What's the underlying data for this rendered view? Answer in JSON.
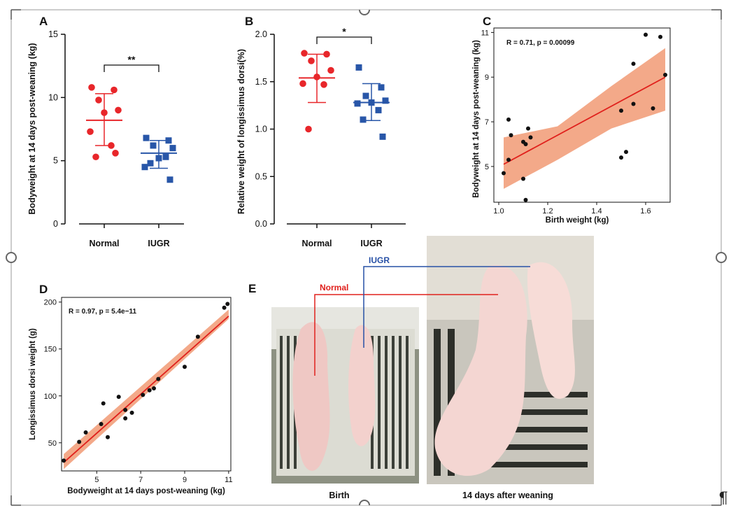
{
  "colors": {
    "normal": "#e8262a",
    "iugr": "#2856a8",
    "ribbon": "#f2a07c",
    "fit_line": "#e0201c",
    "point": "#111111"
  },
  "panels": {
    "A": "A",
    "B": "B",
    "C": "C",
    "D": "D",
    "E": "E"
  },
  "pilcrow": "¶",
  "chart_data": [
    {
      "id": "A",
      "type": "scatter",
      "title": "",
      "ylabel": "Bodyweight at 14 days post-weaning (kg)",
      "xlabel": "",
      "ylim": [
        0,
        15
      ],
      "yticks": [
        "0",
        "5",
        "10",
        "15"
      ],
      "categories": [
        "Normal",
        "IUGR"
      ],
      "series": [
        {
          "name": "Normal",
          "values": [
            10.8,
            10.6,
            9.8,
            9.0,
            8.8,
            7.3,
            6.2,
            5.3,
            5.6
          ],
          "mean": 8.2,
          "sd_low": 6.2,
          "sd_high": 10.3
        },
        {
          "name": "IUGR",
          "values": [
            6.8,
            6.6,
            6.2,
            6.0,
            5.2,
            4.5,
            5.3,
            4.8,
            3.5
          ],
          "mean": 5.6,
          "sd_low": 4.4,
          "sd_high": 6.6
        }
      ],
      "significance": "**"
    },
    {
      "id": "B",
      "type": "scatter",
      "title": "",
      "ylabel": "Relative weight of longissimus dorsi(%)",
      "xlabel": "",
      "ylim": [
        0,
        2.0
      ],
      "yticks": [
        "0.0",
        "0.5",
        "1.0",
        "1.5",
        "2.0"
      ],
      "categories": [
        "Normal",
        "IUGR"
      ],
      "series": [
        {
          "name": "Normal",
          "values": [
            1.8,
            1.79,
            1.72,
            1.62,
            1.55,
            1.48,
            1.47,
            1.0
          ],
          "mean": 1.54,
          "sd_low": 1.28,
          "sd_high": 1.79
        },
        {
          "name": "IUGR",
          "values": [
            1.65,
            1.44,
            1.35,
            1.3,
            1.28,
            1.27,
            1.2,
            1.1,
            0.92
          ],
          "mean": 1.28,
          "sd_low": 1.09,
          "sd_high": 1.48
        }
      ],
      "significance": "*"
    },
    {
      "id": "C",
      "type": "scatter",
      "title": "",
      "xlabel": "Birth weight (kg)",
      "ylabel": "Bodyweight at 14 days post-weaning (kg)",
      "xlim": [
        0.98,
        1.7
      ],
      "ylim": [
        3.4,
        11.2
      ],
      "xticks": [
        "1.0",
        "1.2",
        "1.4",
        "1.6"
      ],
      "yticks": [
        "5",
        "7",
        "9",
        "11"
      ],
      "annotation": "R = 0.71, p = 0.00099",
      "x": [
        1.02,
        1.04,
        1.05,
        1.1,
        1.1,
        1.12,
        1.13,
        1.11,
        1.04,
        1.5,
        1.52,
        1.55,
        1.55,
        1.5,
        1.6,
        1.63,
        1.66,
        1.68,
        1.11
      ],
      "y": [
        4.7,
        7.1,
        6.4,
        6.1,
        4.45,
        6.7,
        6.3,
        3.5,
        5.3,
        5.4,
        5.65,
        7.8,
        9.6,
        7.5,
        10.9,
        7.6,
        10.8,
        9.1,
        6.0
      ],
      "fit": {
        "x": [
          1.02,
          1.68
        ],
        "y": [
          5.1,
          9.0
        ]
      },
      "band_lower": [
        4.0,
        5.3,
        6.7,
        7.5
      ],
      "band_upper": [
        6.3,
        6.8,
        8.6,
        10.3
      ]
    },
    {
      "id": "D",
      "type": "scatter",
      "title": "",
      "xlabel": "Bodyweight at 14 days post-weaning (kg)",
      "ylabel": "Longissimus dorsi weight (g)",
      "xlim": [
        3.4,
        11.1
      ],
      "ylim": [
        20,
        205
      ],
      "xticks": [
        "5",
        "7",
        "9",
        "11"
      ],
      "yticks": [
        "50",
        "100",
        "150",
        "200"
      ],
      "annotation": "R = 0.97, p = 5.4e−11",
      "x": [
        3.5,
        4.2,
        4.5,
        5.2,
        5.3,
        5.5,
        6.0,
        6.3,
        6.3,
        6.6,
        7.1,
        7.4,
        7.6,
        7.8,
        9.0,
        9.6,
        10.8,
        10.95
      ],
      "y": [
        31,
        51,
        61,
        70,
        92,
        56,
        99,
        85,
        76,
        82,
        101,
        106,
        108,
        118,
        131,
        163,
        194,
        198
      ],
      "fit": {
        "x": [
          3.5,
          11.0
        ],
        "y": [
          29,
          185
        ]
      },
      "band_lower": [
        22,
        182
      ],
      "band_upper": [
        38,
        192
      ]
    }
  ],
  "photos": {
    "label_normal": "Normal",
    "label_iugr": "IUGR",
    "caption_left": "Birth",
    "caption_right": "14 days after weaning"
  }
}
